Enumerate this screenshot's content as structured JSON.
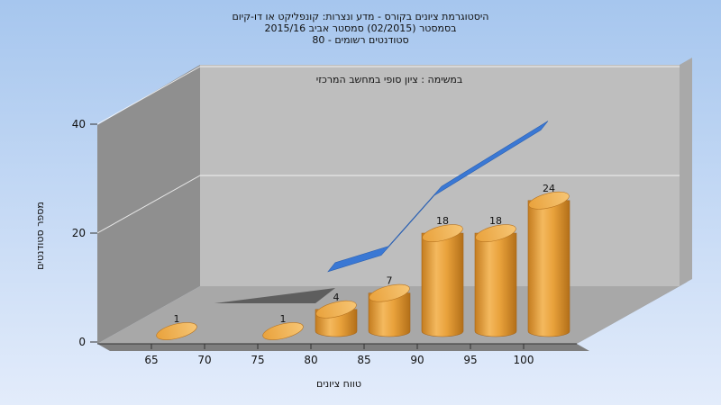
{
  "chart_data": {
    "type": "bar",
    "title_lines": [
      "היסטוגרמת ציונים בקורס - מדע ונצרות: קונפליקט או דו-קיום",
      "בסמסטר  (02/2015)  סמסטר אביב 2015/16",
      "סטודנטים רשומים - 80"
    ],
    "inner_caption": "במשימה : ציון סופי במחשב המרכזי",
    "xlabel": "טווח ציונים",
    "ylabel": "מספר סטודנטים",
    "x_ticks": [
      "65",
      "70",
      "75",
      "80",
      "85",
      "90",
      "95",
      "100"
    ],
    "y_ticks": [
      "0",
      "20",
      "40"
    ],
    "ylim": [
      0,
      40
    ],
    "categories": [
      "65-70",
      "70-75",
      "75-80",
      "80-85",
      "85-90",
      "90-95",
      "95-100",
      "100"
    ],
    "values": [
      1,
      0,
      1,
      4,
      7,
      18,
      18,
      24
    ],
    "trend_values": [
      0,
      0,
      0,
      4,
      7,
      18,
      24,
      30
    ],
    "grid": true,
    "colors": {
      "background_top": "#a6c6ee",
      "background_bottom": "#dfeafb",
      "bar": "#e8a23c",
      "bar_dark": "#c27a1d",
      "bar_light": "#f7c77b",
      "trend": "#3a78d4",
      "back_wall": "#bdbdbd",
      "side_wall": "#8a8a8a",
      "floor": "#a6a6a6"
    }
  }
}
